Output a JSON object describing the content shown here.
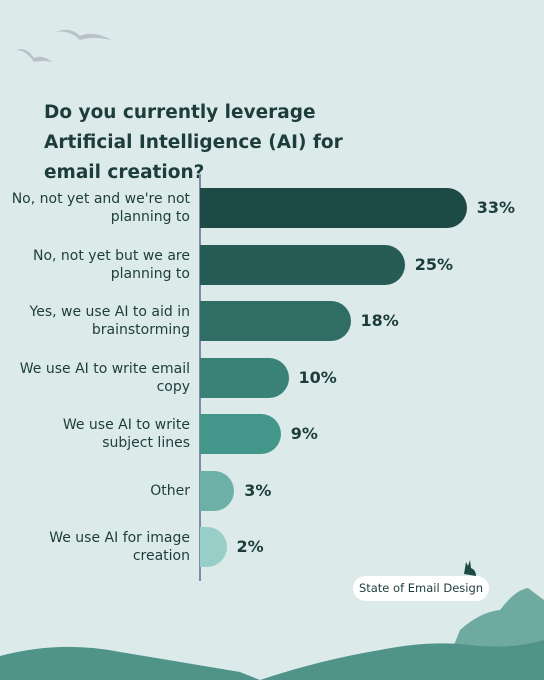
{
  "chart_data": {
    "type": "bar",
    "orientation": "horizontal",
    "title": "Do you currently leverage Artificial Intelligence (AI) for email creation?",
    "categories": [
      "No, not yet and we're not planning to",
      "No, not yet but we are planning to",
      "Yes, we use AI to aid in brainstorming",
      "We use AI to write email copy",
      "We use AI to write subject lines",
      "Other",
      "We use AI for image creation"
    ],
    "values": [
      33,
      25,
      18,
      10,
      9,
      3,
      2
    ],
    "value_labels": [
      "33%",
      "25%",
      "18%",
      "10%",
      "9%",
      "3%",
      "2%"
    ],
    "colors": [
      "#1e4a45",
      "#265c55",
      "#2f6d65",
      "#3a8277",
      "#43968a",
      "#6cb0a8",
      "#99cec8"
    ]
  },
  "footer": {
    "brand": "State of Email Design"
  }
}
